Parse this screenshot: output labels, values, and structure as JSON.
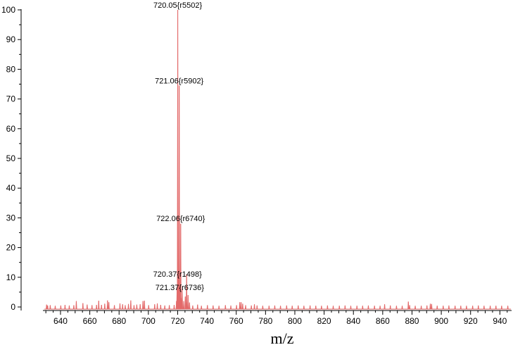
{
  "chart_data": {
    "type": "line",
    "xlabel": "m/z",
    "ylabel": "",
    "xlim": [
      628,
      948
    ],
    "ylim": [
      0,
      101
    ],
    "x_ticks": [
      640,
      660,
      680,
      700,
      720,
      740,
      760,
      780,
      800,
      820,
      840,
      860,
      880,
      900,
      920,
      940
    ],
    "y_ticks": [
      0,
      10,
      20,
      30,
      40,
      50,
      60,
      70,
      80,
      90,
      100
    ],
    "grid": false,
    "legend": "none",
    "line_color": "#e36a6a",
    "peaks": [
      {
        "x": 630.5,
        "y": 0.8
      },
      {
        "x": 631.2,
        "y": 0.5
      },
      {
        "x": 633.0,
        "y": 0.6
      },
      {
        "x": 636.4,
        "y": 0.4
      },
      {
        "x": 640.2,
        "y": 0.5
      },
      {
        "x": 643.1,
        "y": 0.7
      },
      {
        "x": 646.0,
        "y": 0.5
      },
      {
        "x": 649.1,
        "y": 0.6
      },
      {
        "x": 650.8,
        "y": 2.0
      },
      {
        "x": 655.3,
        "y": 1.3
      },
      {
        "x": 658.2,
        "y": 0.8
      },
      {
        "x": 661.5,
        "y": 0.6
      },
      {
        "x": 664.6,
        "y": 0.7
      },
      {
        "x": 666.1,
        "y": 2.1
      },
      {
        "x": 668.0,
        "y": 0.7
      },
      {
        "x": 670.2,
        "y": 1.1
      },
      {
        "x": 672.1,
        "y": 2.2
      },
      {
        "x": 673.0,
        "y": 1.6
      },
      {
        "x": 676.8,
        "y": 0.6
      },
      {
        "x": 680.6,
        "y": 1.2
      },
      {
        "x": 682.4,
        "y": 0.9
      },
      {
        "x": 684.2,
        "y": 0.6
      },
      {
        "x": 686.4,
        "y": 1.0
      },
      {
        "x": 688.0,
        "y": 2.2
      },
      {
        "x": 690.2,
        "y": 0.6
      },
      {
        "x": 692.1,
        "y": 0.8
      },
      {
        "x": 694.4,
        "y": 0.9
      },
      {
        "x": 696.3,
        "y": 2.0
      },
      {
        "x": 697.3,
        "y": 2.1
      },
      {
        "x": 700.2,
        "y": 0.6
      },
      {
        "x": 704.3,
        "y": 0.9
      },
      {
        "x": 706.1,
        "y": 1.2
      },
      {
        "x": 708.4,
        "y": 0.7
      },
      {
        "x": 711.2,
        "y": 0.5
      },
      {
        "x": 714.3,
        "y": 0.6
      },
      {
        "x": 717.6,
        "y": 0.7
      },
      {
        "x": 719.2,
        "y": 2.0
      },
      {
        "x": 719.6,
        "y": 6.0
      },
      {
        "x": 720.05,
        "y": 100.0
      },
      {
        "x": 720.37,
        "y": 9.5
      },
      {
        "x": 720.7,
        "y": 4.0
      },
      {
        "x": 721.06,
        "y": 74.5
      },
      {
        "x": 721.37,
        "y": 5.0
      },
      {
        "x": 721.7,
        "y": 3.0
      },
      {
        "x": 722.06,
        "y": 28.0
      },
      {
        "x": 722.4,
        "y": 3.0
      },
      {
        "x": 723.1,
        "y": 6.0
      },
      {
        "x": 724.1,
        "y": 2.0
      },
      {
        "x": 725.2,
        "y": 3.5
      },
      {
        "x": 726.1,
        "y": 11.0
      },
      {
        "x": 727.1,
        "y": 4.0
      },
      {
        "x": 728.1,
        "y": 1.5
      },
      {
        "x": 730.3,
        "y": 0.5
      },
      {
        "x": 733.6,
        "y": 0.8
      },
      {
        "x": 736.2,
        "y": 0.4
      },
      {
        "x": 740.3,
        "y": 0.6
      },
      {
        "x": 744.2,
        "y": 0.5
      },
      {
        "x": 748.2,
        "y": 0.4
      },
      {
        "x": 752.6,
        "y": 0.6
      },
      {
        "x": 756.3,
        "y": 0.5
      },
      {
        "x": 760.2,
        "y": 0.6
      },
      {
        "x": 762.4,
        "y": 1.6
      },
      {
        "x": 763.3,
        "y": 1.6
      },
      {
        "x": 764.4,
        "y": 1.1
      },
      {
        "x": 766.4,
        "y": 0.6
      },
      {
        "x": 770.3,
        "y": 0.5
      },
      {
        "x": 772.4,
        "y": 0.9
      },
      {
        "x": 774.2,
        "y": 0.5
      },
      {
        "x": 778.1,
        "y": 0.4
      },
      {
        "x": 782.4,
        "y": 0.4
      },
      {
        "x": 786.3,
        "y": 0.5
      },
      {
        "x": 790.2,
        "y": 0.4
      },
      {
        "x": 794.4,
        "y": 0.5
      },
      {
        "x": 798.2,
        "y": 0.4
      },
      {
        "x": 802.3,
        "y": 0.5
      },
      {
        "x": 806.2,
        "y": 0.4
      },
      {
        "x": 810.4,
        "y": 0.5
      },
      {
        "x": 814.3,
        "y": 0.4
      },
      {
        "x": 818.2,
        "y": 0.4
      },
      {
        "x": 822.3,
        "y": 0.5
      },
      {
        "x": 826.2,
        "y": 0.4
      },
      {
        "x": 830.4,
        "y": 0.4
      },
      {
        "x": 834.3,
        "y": 0.5
      },
      {
        "x": 838.2,
        "y": 0.4
      },
      {
        "x": 842.4,
        "y": 0.4
      },
      {
        "x": 846.3,
        "y": 0.4
      },
      {
        "x": 850.2,
        "y": 0.5
      },
      {
        "x": 854.4,
        "y": 0.4
      },
      {
        "x": 858.2,
        "y": 0.4
      },
      {
        "x": 861.3,
        "y": 0.9
      },
      {
        "x": 865.2,
        "y": 0.5
      },
      {
        "x": 869.4,
        "y": 0.4
      },
      {
        "x": 873.3,
        "y": 0.4
      },
      {
        "x": 877.5,
        "y": 1.8
      },
      {
        "x": 878.4,
        "y": 0.6
      },
      {
        "x": 882.2,
        "y": 0.4
      },
      {
        "x": 886.3,
        "y": 0.4
      },
      {
        "x": 890.2,
        "y": 0.5
      },
      {
        "x": 892.5,
        "y": 1.1
      },
      {
        "x": 893.4,
        "y": 1.0
      },
      {
        "x": 897.2,
        "y": 0.4
      },
      {
        "x": 901.3,
        "y": 0.4
      },
      {
        "x": 905.2,
        "y": 0.5
      },
      {
        "x": 909.4,
        "y": 0.4
      },
      {
        "x": 913.3,
        "y": 0.4
      },
      {
        "x": 917.2,
        "y": 0.4
      },
      {
        "x": 921.4,
        "y": 0.4
      },
      {
        "x": 925.3,
        "y": 0.5
      },
      {
        "x": 929.2,
        "y": 0.4
      },
      {
        "x": 933.4,
        "y": 0.4
      },
      {
        "x": 937.3,
        "y": 0.4
      },
      {
        "x": 941.2,
        "y": 0.4
      },
      {
        "x": 945.4,
        "y": 0.4
      }
    ],
    "annotations": [
      {
        "text": "720.05{r5502}",
        "x": 720.05,
        "y": 100.0
      },
      {
        "text": "721.06{r5902}",
        "x": 721.06,
        "y": 74.5
      },
      {
        "text": "722.06{r6740}",
        "x": 722.06,
        "y": 28.0
      },
      {
        "text": "720.37{r1498}",
        "x": 720.37,
        "y": 9.5
      },
      {
        "text": "721.37{r6736}",
        "x": 721.37,
        "y": 5.0
      }
    ]
  }
}
